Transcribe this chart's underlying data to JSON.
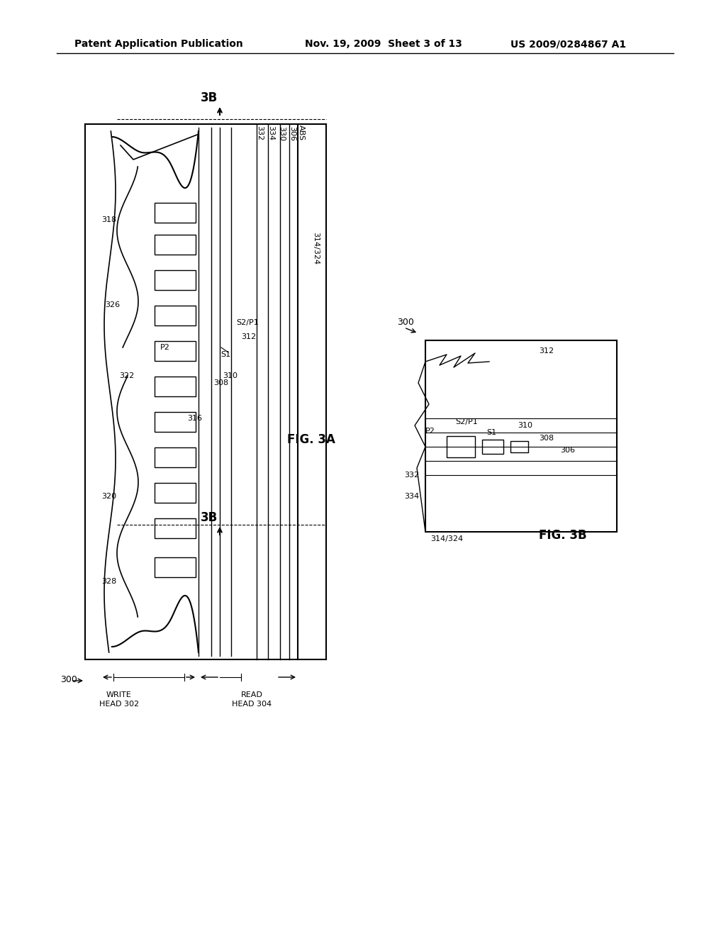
{
  "bg_color": "#ffffff",
  "header_text": "Patent Application Publication",
  "header_date": "Nov. 19, 2009  Sheet 3 of 13",
  "header_patent": "US 2009/0284867 A1",
  "fig3a_label": "FIG. 3A",
  "fig3b_label": "FIG. 3B",
  "label_3B_top": "3B",
  "label_3B_bot": "3B"
}
